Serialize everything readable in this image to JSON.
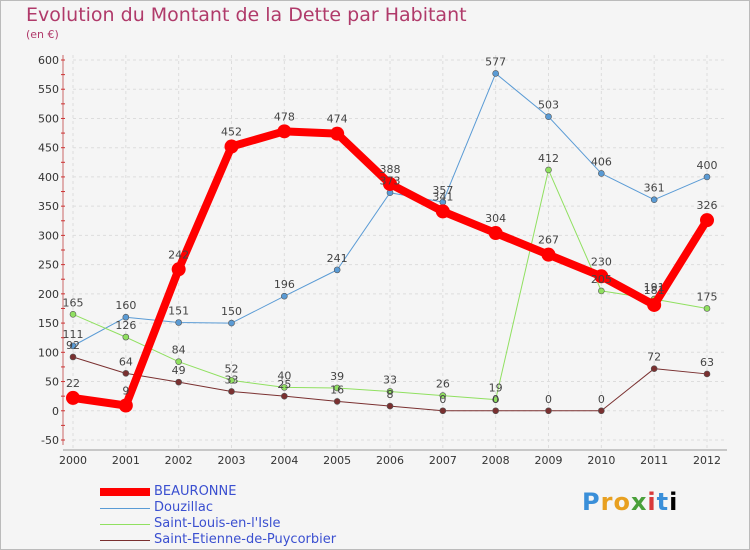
{
  "title": "Evolution du Montant de la Dette par Habitant",
  "unit": "(en €)",
  "logo": "Proxiti",
  "chart_data": {
    "type": "line",
    "x": [
      "2000",
      "2001",
      "2002",
      "2003",
      "2004",
      "2005",
      "2006",
      "2007",
      "2008",
      "2009",
      "2010",
      "2011",
      "2012"
    ],
    "ylim": [
      -50,
      600
    ],
    "yticks": [
      -50,
      0,
      50,
      100,
      150,
      200,
      250,
      300,
      350,
      400,
      450,
      500,
      550,
      600
    ],
    "grid": true,
    "legend": "bottom-left",
    "series": [
      {
        "name": "BEAURONNE",
        "color": "#ff0000",
        "width": 8,
        "marker": 7,
        "values": [
          22,
          9,
          242,
          452,
          478,
          474,
          388,
          341,
          304,
          267,
          230,
          181,
          326
        ],
        "labels": [
          "22",
          "9",
          "242",
          "452",
          "478",
          "474",
          "388",
          "341",
          "304",
          "267",
          "230",
          "181",
          "326"
        ]
      },
      {
        "name": "Douzillac",
        "color": "#5a9bd5",
        "width": 1,
        "marker": 3,
        "values": [
          111,
          160,
          151,
          150,
          196,
          241,
          373,
          357,
          577,
          503,
          406,
          361,
          400
        ],
        "labels": [
          "111",
          "160",
          "151",
          "150",
          "196",
          "241",
          "373",
          "357",
          "577",
          "503",
          "406",
          "361",
          "400"
        ]
      },
      {
        "name": "Saint-Louis-en-l'Isle",
        "color": "#90e060",
        "width": 1,
        "marker": 3,
        "values": [
          165,
          126,
          84,
          52,
          40,
          39,
          33,
          26,
          19,
          412,
          205,
          191,
          175
        ],
        "labels": [
          "165",
          "126",
          "84",
          "52",
          "40",
          "39",
          "33",
          "26",
          "19",
          "412",
          "205",
          "191",
          "175"
        ]
      },
      {
        "name": "Saint-Etienne-de-Puycorbier",
        "color": "#7a3030",
        "width": 1,
        "marker": 3,
        "values": [
          92,
          64,
          49,
          33,
          25,
          16,
          8,
          0,
          0,
          0,
          0,
          72,
          63
        ],
        "labels": [
          "92",
          "64",
          "49",
          "33",
          "25",
          "16",
          "8",
          "0",
          "0",
          "0",
          "0",
          "72",
          "63"
        ]
      }
    ]
  }
}
